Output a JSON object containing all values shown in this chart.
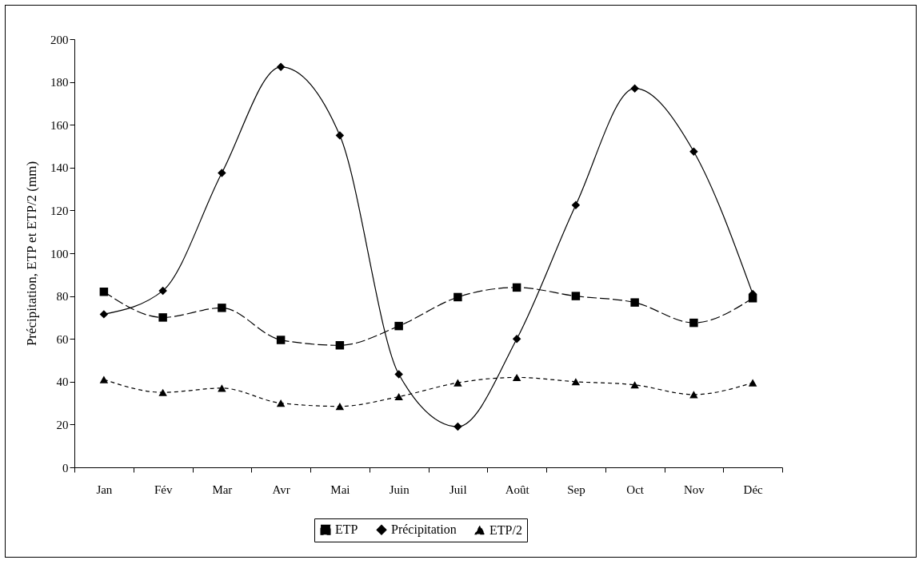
{
  "chart_data": {
    "type": "line",
    "ylabel": "Précipitation, ETP et ETP/2 (mm)",
    "categories": [
      "Jan",
      "Fév",
      "Mar",
      "Avr",
      "Mai",
      "Juin",
      "Juil",
      "Août",
      "Sep",
      "Oct",
      "Nov",
      "Déc"
    ],
    "series": [
      {
        "name": "ETP",
        "color": "#000000",
        "marker": "square",
        "line_style": "dashed",
        "values": [
          82,
          70,
          74.5,
          59.5,
          57,
          66,
          79.5,
          84,
          80,
          77,
          67.5,
          79
        ]
      },
      {
        "name": "Précipitation",
        "color": "#000000",
        "marker": "diamond",
        "line_style": "solid",
        "values": [
          71.5,
          82.5,
          137.5,
          187,
          155,
          43.5,
          19,
          60,
          122.5,
          177,
          147.5,
          81
        ]
      },
      {
        "name": "ETP/2",
        "color": "#000000",
        "marker": "triangle",
        "line_style": "dotted",
        "values": [
          41,
          35,
          37,
          30,
          28.5,
          33,
          39.5,
          42,
          40,
          38.5,
          34,
          39.5
        ]
      }
    ],
    "ylim": [
      0,
      200
    ],
    "yticks": [
      0,
      20,
      40,
      60,
      80,
      100,
      120,
      140,
      160,
      180,
      200
    ],
    "grid": false,
    "legend": "bottom"
  }
}
